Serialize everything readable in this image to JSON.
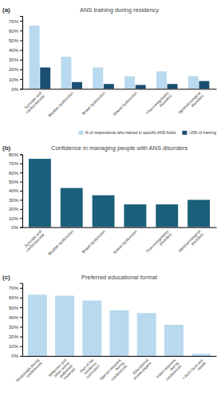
{
  "chart_data": [
    {
      "type": "bar",
      "title": "ANS training during residency",
      "annotations": [
        "(a)"
      ],
      "categories": [
        "Syncope and\ncardiovascular",
        "Bladder dysfunction",
        "Bowel dysfunction",
        "Sexual dysfunction",
        "Thermoregulatory\ndisorders",
        "Ophthalmological\ndisorders"
      ],
      "series": [
        {
          "name": "% of respondents who trained in specific ANS fields",
          "color": "#b8d9ee",
          "values": [
            65,
            33,
            22,
            13,
            18,
            13
          ]
        },
        {
          "name": ">25h of training",
          "color": "#1b4f72",
          "values": [
            22,
            7,
            5,
            4,
            5,
            8
          ]
        }
      ],
      "ylim": [
        0,
        75
      ],
      "yticks": [
        {
          "value": 0,
          "label": "0%"
        },
        {
          "value": 10,
          "label": "10%"
        },
        {
          "value": 20,
          "label": "20%"
        },
        {
          "value": 30,
          "label": "30%"
        },
        {
          "value": 40,
          "label": "40%"
        },
        {
          "value": 50,
          "label": "50%"
        },
        {
          "value": 60,
          "label": "60%"
        },
        {
          "value": 70,
          "label": "70%"
        }
      ],
      "grid": false,
      "legend": "bottom"
    },
    {
      "type": "bar",
      "title": "Confidence in managing people with ANS disorders",
      "annotations": [
        "(b)"
      ],
      "categories": [
        "Syncope and\ncardiovascular",
        "Bladder dysfunction",
        "Bowel dysfunction",
        "Sexual dysfunction",
        "Thermoregulatory\ndisorders",
        "Ophthalmological\ndisorders"
      ],
      "values": [
        75,
        43,
        35,
        25,
        25,
        30
      ],
      "color": "#1b5f7a",
      "ylim": [
        0,
        80
      ],
      "yticks": [
        {
          "value": 0,
          "label": "0%"
        },
        {
          "value": 10,
          "label": "10%"
        },
        {
          "value": 20,
          "label": "20%"
        },
        {
          "value": 30,
          "label": "30%"
        },
        {
          "value": 40,
          "label": "40%"
        },
        {
          "value": 50,
          "label": "50%"
        },
        {
          "value": 60,
          "label": "60%"
        },
        {
          "value": 70,
          "label": "70%"
        },
        {
          "value": 80,
          "label": "80%"
        }
      ],
      "grid": false
    },
    {
      "type": "bar",
      "title": "Preferred educational format",
      "annotations": [
        "(c)"
      ],
      "categories": [
        "Workshops during\nconferences",
        "Webinars and\nother online\npublished\nmaterials",
        "Part of the\nresidency\ncurriculum",
        "Special sessions\nduring\nconferences",
        "Educational\nreview papers",
        "Video sessions\nduring\nconferences",
        "I don't have any\nneeds"
      ],
      "values": [
        63,
        62,
        57,
        47,
        44,
        32,
        2
      ],
      "color": "#b8d9ee",
      "ylim": [
        0,
        75
      ],
      "yticks": [
        {
          "value": 0,
          "label": "0%"
        },
        {
          "value": 10,
          "label": "10%"
        },
        {
          "value": 20,
          "label": "20%"
        },
        {
          "value": 30,
          "label": "30%"
        },
        {
          "value": 40,
          "label": "40%"
        },
        {
          "value": 50,
          "label": "50%"
        },
        {
          "value": 60,
          "label": "60%"
        },
        {
          "value": 70,
          "label": "70%"
        }
      ],
      "grid": false
    }
  ]
}
